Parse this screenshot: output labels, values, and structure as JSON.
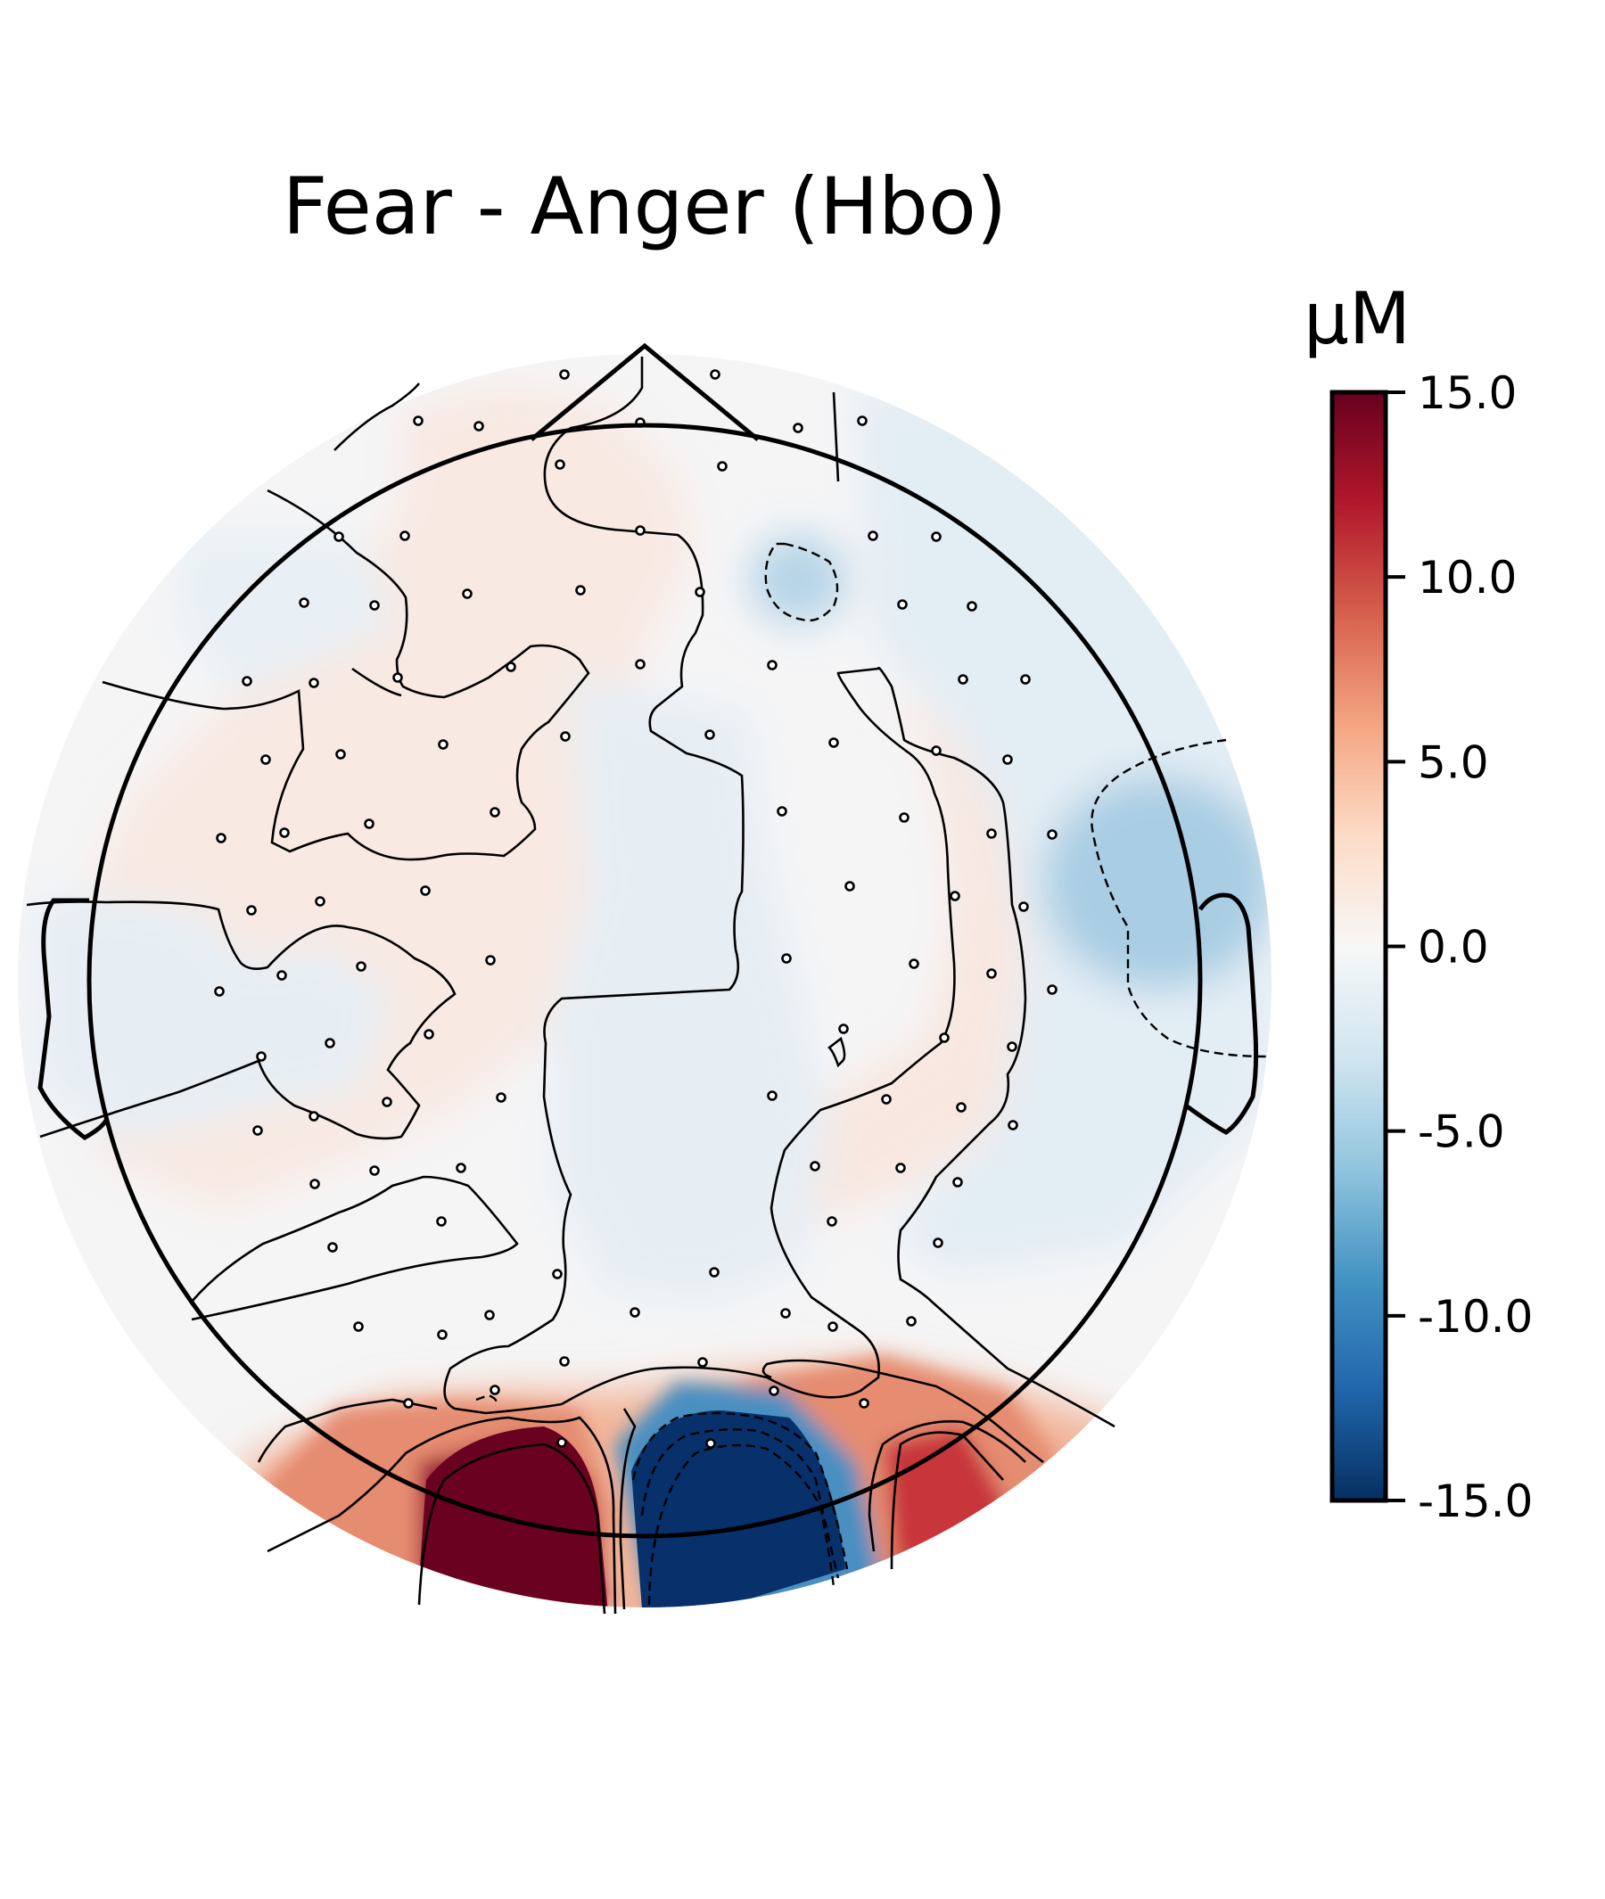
{
  "chart_data": {
    "type": "heatmap",
    "subtype": "topomap",
    "title": "Fear - Anger (Hbo)",
    "colorbar": {
      "label": "µM",
      "colormap": "RdBu_r",
      "vmin": -15.0,
      "vmax": 15.0,
      "ticks": [
        15.0,
        10.0,
        5.0,
        0.0,
        -5.0,
        -10.0,
        -15.0
      ],
      "tick_labels": [
        "15.0",
        "10.0",
        "5.0",
        "0.0",
        "-5.0",
        "-10.0",
        "-15.0"
      ]
    },
    "features": {
      "positive_peak": {
        "region": "occipital-left",
        "value": 15.0
      },
      "negative_peak": {
        "region": "occipital-center",
        "value": -15.0
      },
      "secondary_positive": {
        "region": "occipital-right",
        "value": 11.0
      },
      "negative_region_right": {
        "region": "right-temporal",
        "value": -6.0
      },
      "negative_region_frontal": {
        "region": "right-frontal",
        "value": -5.5
      }
    },
    "contours": {
      "solid": "values >= 0",
      "dashed": "values < 0"
    },
    "sensor_count": 103
  },
  "colors": {
    "cmap_stops": [
      "#053061",
      "#2166ac",
      "#4393c3",
      "#92c5de",
      "#d1e5f0",
      "#f7f7f7",
      "#fddbc7",
      "#f4a582",
      "#d6604d",
      "#b2182b",
      "#67001f"
    ]
  }
}
